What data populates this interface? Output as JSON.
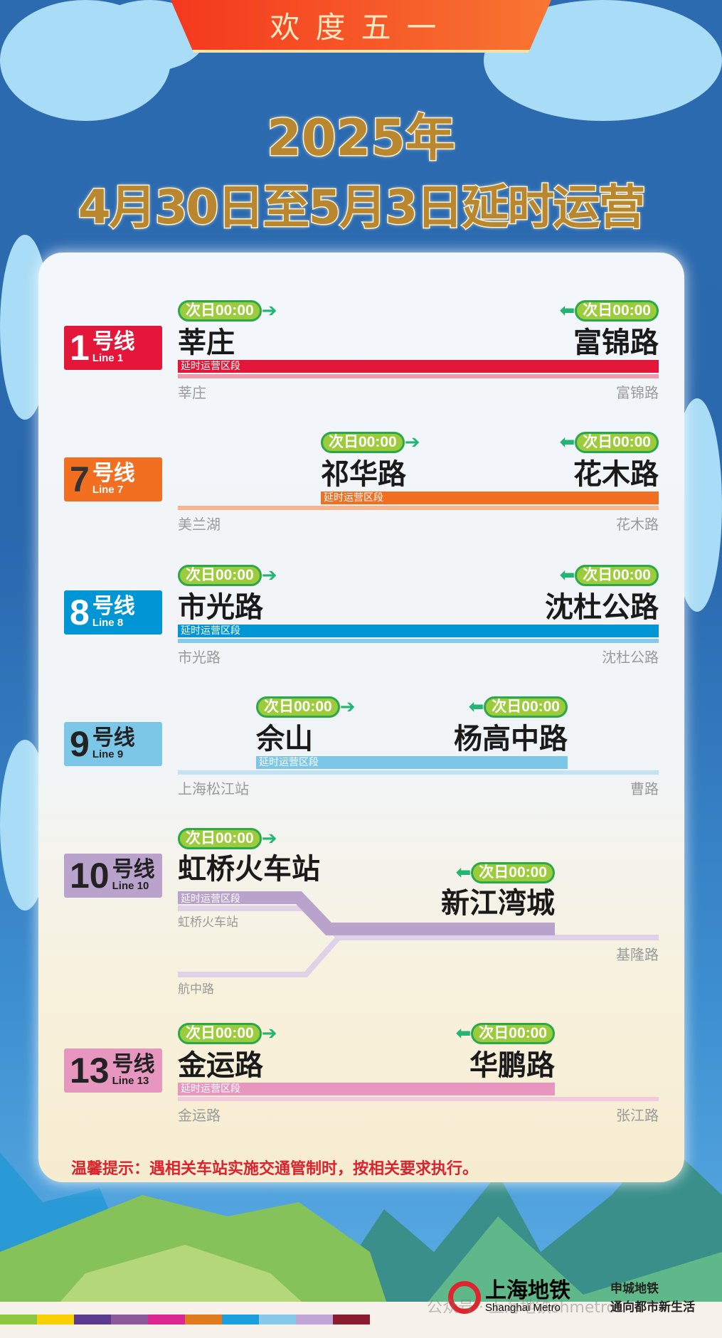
{
  "banner": "欢度五一",
  "title": {
    "line1": "2025年",
    "line2": "4月30日至5月3日延时运营"
  },
  "segment_label": "延时运营区段",
  "lines": [
    {
      "num": "1",
      "hx": "号线",
      "en": "Line 1",
      "color": "#e4163a",
      "light": "#f19aac",
      "left_time": "次日00:00",
      "right_time": "次日00:00",
      "left_station": "莘庄",
      "right_station": "富锦路",
      "route_start": "莘庄",
      "route_end": "富锦路"
    },
    {
      "num": "7",
      "hx": "号线",
      "en": "Line 7",
      "color": "#f26f22",
      "light": "#f7b48f",
      "left_time": "次日00:00",
      "right_time": "次日00:00",
      "left_station": "祁华路",
      "right_station": "花木路",
      "route_start": "美兰湖",
      "route_end": "花木路"
    },
    {
      "num": "8",
      "hx": "号线",
      "en": "Line 8",
      "color": "#0096d6",
      "light": "#86c9ea",
      "left_time": "次日00:00",
      "right_time": "次日00:00",
      "left_station": "市光路",
      "right_station": "沈杜公路",
      "route_start": "市光路",
      "route_end": "沈杜公路"
    },
    {
      "num": "9",
      "hx": "号线",
      "en": "Line 9",
      "color": "#7cc6e8",
      "light": "#c2e3f3",
      "left_time": "次日00:00",
      "right_time": "次日00:00",
      "left_station": "佘山",
      "right_station": "杨高中路",
      "route_start": "上海松江站",
      "route_end": "曹路"
    },
    {
      "num": "10",
      "hx": "号线",
      "en": "Line 10",
      "color": "#b9a3cd",
      "light": "#ddd2e8",
      "left_time": "次日00:00",
      "right_time": "次日00:00",
      "left_station": "虹桥火车站",
      "right_station": "新江湾城",
      "route_start": "虹桥火车站",
      "route_branch": "航中路",
      "route_end": "基隆路"
    },
    {
      "num": "13",
      "hx": "号线",
      "en": "Line 13",
      "color": "#e796c0",
      "light": "#f3c9de",
      "left_time": "次日00:00",
      "right_time": "次日00:00",
      "left_station": "金运路",
      "right_station": "华鹏路",
      "route_start": "金运路",
      "route_end": "张江路"
    }
  ],
  "tip": "温馨提示：遇相关车站实施交通管制时，按相关要求执行。",
  "logo": {
    "cn": "上海地铁",
    "en": "Shanghai Metro",
    "slogan1": "申城地铁",
    "slogan2": "通向都市新生活",
    "watermark": "公众号 · 上海地铁shmetro"
  },
  "colors": {
    "pill": "#9ccb3b",
    "arrow": "#22b573",
    "sky": "#2c6bb0",
    "title_gold": "#b9872f",
    "tip": "#d9232e"
  }
}
